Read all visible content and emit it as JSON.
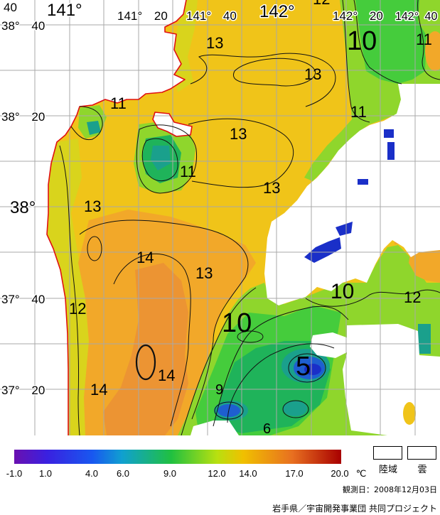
{
  "map": {
    "lon_labels": [
      "40",
      "141°",
      "141° 20",
      "141° 40",
      "142°",
      "142° 20",
      "142° 40"
    ],
    "lat_labels": [
      "38° 40",
      "38° 20",
      "38°",
      "37° 40",
      "37° 20"
    ],
    "contour_labels": [
      "13",
      "13",
      "13",
      "13",
      "13",
      "13",
      "14",
      "14",
      "14",
      "12",
      "11",
      "11",
      "11",
      "11",
      "10",
      "10",
      "10",
      "12",
      "12",
      "9",
      "6",
      "5"
    ]
  },
  "colorbar": {
    "ticks": [
      "-1.0",
      "1.0",
      "4.0",
      "6.0",
      "9.0",
      "12.0",
      "14.0",
      "17.0",
      "20.0"
    ],
    "unit": "℃",
    "colors": [
      "#6a10b0",
      "#3a20e0",
      "#1858f0",
      "#10a0d0",
      "#20c040",
      "#b8e010",
      "#f0c000",
      "#e87020",
      "#a80000"
    ]
  },
  "legend": {
    "land": "陸域",
    "cloud": "雲"
  },
  "footer": {
    "observation_date": "観測日：2008年12月03日",
    "credit": "岩手県／宇宙開発事業団 共同プロジェクト"
  }
}
